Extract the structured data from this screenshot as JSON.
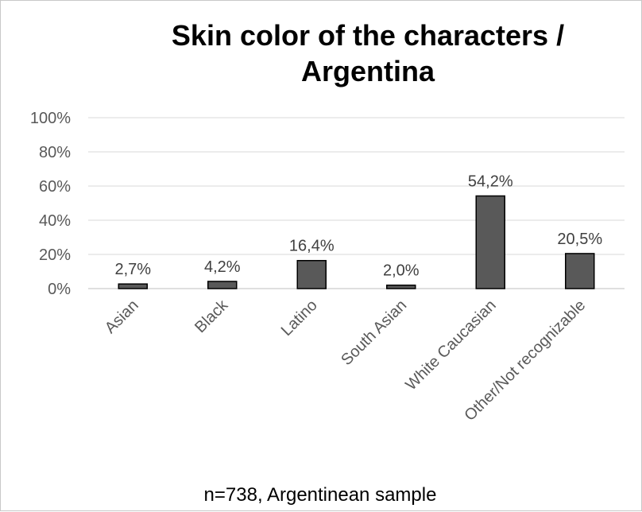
{
  "chart_data": {
    "type": "bar",
    "title": "Skin color of the characters / Argentina",
    "title_lines": [
      "Skin color of the characters /",
      "Argentina"
    ],
    "categories": [
      "Asian",
      "Black",
      "Latino",
      "South Asian",
      "White Caucasian",
      "Other/Not recognizable"
    ],
    "values": [
      2.7,
      4.2,
      16.4,
      2.0,
      54.2,
      20.5
    ],
    "data_labels": [
      "2,7%",
      "4,2%",
      "16,4%",
      "2,0%",
      "54,2%",
      "20,5%"
    ],
    "ylim": [
      0,
      100
    ],
    "y_ticks": [
      0,
      20,
      40,
      60,
      80,
      100
    ],
    "y_tick_labels": [
      "0%",
      "20%",
      "40%",
      "60%",
      "80%",
      "100%"
    ],
    "xlabel": "",
    "ylabel": "",
    "grid": true,
    "legend": "none",
    "footnote": "n=738, Argentinean sample",
    "colors": {
      "bar_fill": "#595959",
      "bar_stroke": "#000000",
      "gridline": "#d9d9d9",
      "axis": "#bfbfbf",
      "tick_text": "#595959",
      "label_text": "#404040"
    }
  }
}
